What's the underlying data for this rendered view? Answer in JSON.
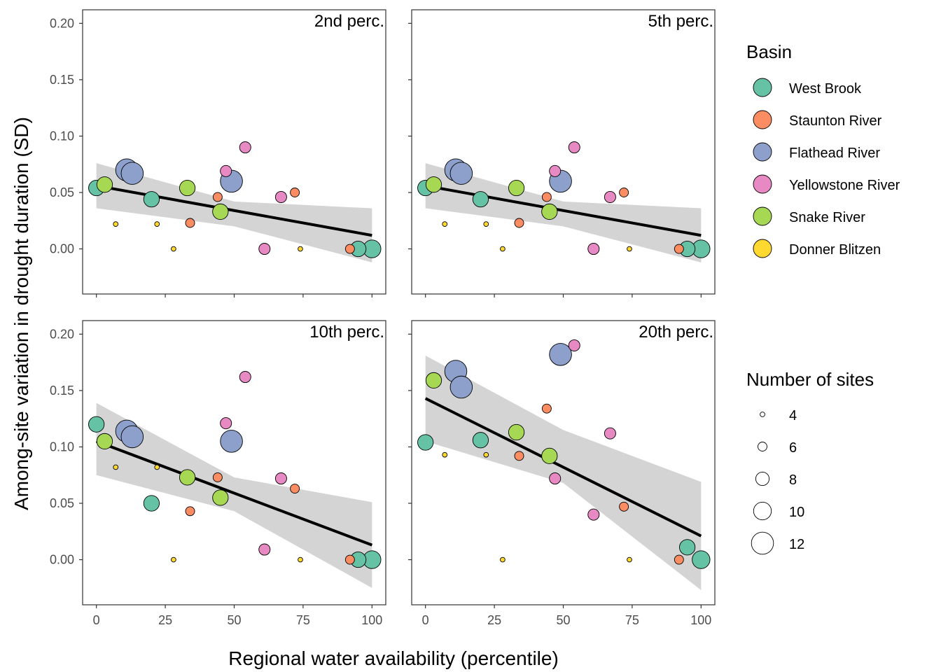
{
  "chart_data": {
    "type": "scatter",
    "xlabel": "Regional water availability (percentile)",
    "ylabel": "Among-site variation in drought duration (SD)",
    "xlim": [
      -5,
      105
    ],
    "ylim": [
      -0.04,
      0.212
    ],
    "x_ticks": [
      0,
      25,
      50,
      75,
      100
    ],
    "y_ticks": [
      0.0,
      0.05,
      0.1,
      0.15,
      0.2
    ],
    "x_tick_labels": [
      "0",
      "25",
      "50",
      "75",
      "100"
    ],
    "y_tick_labels": [
      "0.00",
      "0.05",
      "0.10",
      "0.15",
      "0.20"
    ],
    "grid": false,
    "legend_placement": "right",
    "basin_legend": {
      "title": "Basin",
      "entries": [
        {
          "name": "West Brook",
          "color": "#66c2a5"
        },
        {
          "name": "Staunton River",
          "color": "#fc8d62"
        },
        {
          "name": "Flathead River",
          "color": "#8da0cb"
        },
        {
          "name": "Yellowstone River",
          "color": "#e78ac3"
        },
        {
          "name": "Snake River",
          "color": "#a6d854"
        },
        {
          "name": "Donner Blitzen",
          "color": "#ffd92f"
        }
      ]
    },
    "size_legend": {
      "title": "Number of sites",
      "values": [
        4,
        6,
        8,
        10,
        12
      ],
      "labels": [
        "4",
        "6",
        "8",
        "10",
        "12"
      ]
    },
    "panels": [
      {
        "label": "2nd perc.",
        "points": [
          {
            "basin": "West Brook",
            "x": 0,
            "y": 0.054,
            "n": 9
          },
          {
            "basin": "West Brook",
            "x": 20,
            "y": 0.044,
            "n": 9
          },
          {
            "basin": "West Brook",
            "x": 95,
            "y": 0.0,
            "n": 9
          },
          {
            "basin": "West Brook",
            "x": 100,
            "y": 0.0,
            "n": 10
          },
          {
            "basin": "Staunton River",
            "x": 34,
            "y": 0.023,
            "n": 6
          },
          {
            "basin": "Staunton River",
            "x": 44,
            "y": 0.046,
            "n": 6
          },
          {
            "basin": "Staunton River",
            "x": 72,
            "y": 0.05,
            "n": 6
          },
          {
            "basin": "Staunton River",
            "x": 92,
            "y": 0.0,
            "n": 6
          },
          {
            "basin": "Flathead River",
            "x": 11,
            "y": 0.07,
            "n": 12
          },
          {
            "basin": "Flathead River",
            "x": 13,
            "y": 0.067,
            "n": 12
          },
          {
            "basin": "Flathead River",
            "x": 49,
            "y": 0.06,
            "n": 12
          },
          {
            "basin": "Yellowstone River",
            "x": 47,
            "y": 0.069,
            "n": 7
          },
          {
            "basin": "Yellowstone River",
            "x": 54,
            "y": 0.09,
            "n": 7
          },
          {
            "basin": "Yellowstone River",
            "x": 61,
            "y": 0.0,
            "n": 7
          },
          {
            "basin": "Yellowstone River",
            "x": 67,
            "y": 0.046,
            "n": 7
          },
          {
            "basin": "Snake River",
            "x": 3,
            "y": 0.057,
            "n": 9
          },
          {
            "basin": "Snake River",
            "x": 33,
            "y": 0.054,
            "n": 9
          },
          {
            "basin": "Snake River",
            "x": 45,
            "y": 0.033,
            "n": 9
          },
          {
            "basin": "Donner Blitzen",
            "x": 7,
            "y": 0.022,
            "n": 4
          },
          {
            "basin": "Donner Blitzen",
            "x": 22,
            "y": 0.022,
            "n": 4
          },
          {
            "basin": "Donner Blitzen",
            "x": 28,
            "y": 0.0,
            "n": 4
          },
          {
            "basin": "Donner Blitzen",
            "x": 74,
            "y": 0.0,
            "n": 4
          }
        ],
        "trend": {
          "x": [
            0,
            100
          ],
          "y": [
            0.056,
            0.012
          ]
        },
        "ribbon": {
          "x": [
            0,
            50,
            100
          ],
          "lower": [
            0.036,
            0.02,
            -0.012
          ],
          "upper": [
            0.076,
            0.042,
            0.036
          ]
        }
      },
      {
        "label": "5th perc.",
        "points": [
          {
            "basin": "West Brook",
            "x": 0,
            "y": 0.054,
            "n": 9
          },
          {
            "basin": "West Brook",
            "x": 20,
            "y": 0.044,
            "n": 9
          },
          {
            "basin": "West Brook",
            "x": 95,
            "y": 0.0,
            "n": 9
          },
          {
            "basin": "West Brook",
            "x": 100,
            "y": 0.0,
            "n": 10
          },
          {
            "basin": "Staunton River",
            "x": 34,
            "y": 0.023,
            "n": 6
          },
          {
            "basin": "Staunton River",
            "x": 44,
            "y": 0.046,
            "n": 6
          },
          {
            "basin": "Staunton River",
            "x": 72,
            "y": 0.05,
            "n": 6
          },
          {
            "basin": "Staunton River",
            "x": 92,
            "y": 0.0,
            "n": 6
          },
          {
            "basin": "Flathead River",
            "x": 11,
            "y": 0.07,
            "n": 12
          },
          {
            "basin": "Flathead River",
            "x": 13,
            "y": 0.067,
            "n": 12
          },
          {
            "basin": "Flathead River",
            "x": 49,
            "y": 0.06,
            "n": 12
          },
          {
            "basin": "Yellowstone River",
            "x": 47,
            "y": 0.069,
            "n": 7
          },
          {
            "basin": "Yellowstone River",
            "x": 54,
            "y": 0.09,
            "n": 7
          },
          {
            "basin": "Yellowstone River",
            "x": 61,
            "y": 0.0,
            "n": 7
          },
          {
            "basin": "Yellowstone River",
            "x": 67,
            "y": 0.046,
            "n": 7
          },
          {
            "basin": "Snake River",
            "x": 3,
            "y": 0.057,
            "n": 9
          },
          {
            "basin": "Snake River",
            "x": 33,
            "y": 0.054,
            "n": 9
          },
          {
            "basin": "Snake River",
            "x": 45,
            "y": 0.033,
            "n": 9
          },
          {
            "basin": "Donner Blitzen",
            "x": 7,
            "y": 0.022,
            "n": 4
          },
          {
            "basin": "Donner Blitzen",
            "x": 22,
            "y": 0.022,
            "n": 4
          },
          {
            "basin": "Donner Blitzen",
            "x": 28,
            "y": 0.0,
            "n": 4
          },
          {
            "basin": "Donner Blitzen",
            "x": 74,
            "y": 0.0,
            "n": 4
          }
        ],
        "trend": {
          "x": [
            0,
            100
          ],
          "y": [
            0.056,
            0.012
          ]
        },
        "ribbon": {
          "x": [
            0,
            50,
            100
          ],
          "lower": [
            0.036,
            0.02,
            -0.012
          ],
          "upper": [
            0.076,
            0.042,
            0.036
          ]
        }
      },
      {
        "label": "10th perc.",
        "points": [
          {
            "basin": "West Brook",
            "x": 0,
            "y": 0.12,
            "n": 9
          },
          {
            "basin": "West Brook",
            "x": 20,
            "y": 0.05,
            "n": 9
          },
          {
            "basin": "West Brook",
            "x": 95,
            "y": 0.0,
            "n": 9
          },
          {
            "basin": "West Brook",
            "x": 100,
            "y": 0.0,
            "n": 10
          },
          {
            "basin": "Staunton River",
            "x": 34,
            "y": 0.043,
            "n": 6
          },
          {
            "basin": "Staunton River",
            "x": 44,
            "y": 0.073,
            "n": 6
          },
          {
            "basin": "Staunton River",
            "x": 72,
            "y": 0.063,
            "n": 6
          },
          {
            "basin": "Staunton River",
            "x": 92,
            "y": 0.0,
            "n": 6
          },
          {
            "basin": "Flathead River",
            "x": 11,
            "y": 0.114,
            "n": 12
          },
          {
            "basin": "Flathead River",
            "x": 13,
            "y": 0.109,
            "n": 12
          },
          {
            "basin": "Flathead River",
            "x": 49,
            "y": 0.105,
            "n": 12
          },
          {
            "basin": "Yellowstone River",
            "x": 47,
            "y": 0.121,
            "n": 7
          },
          {
            "basin": "Yellowstone River",
            "x": 54,
            "y": 0.162,
            "n": 7
          },
          {
            "basin": "Yellowstone River",
            "x": 61,
            "y": 0.009,
            "n": 7
          },
          {
            "basin": "Yellowstone River",
            "x": 67,
            "y": 0.072,
            "n": 7
          },
          {
            "basin": "Snake River",
            "x": 3,
            "y": 0.105,
            "n": 9
          },
          {
            "basin": "Snake River",
            "x": 33,
            "y": 0.073,
            "n": 9
          },
          {
            "basin": "Snake River",
            "x": 45,
            "y": 0.055,
            "n": 9
          },
          {
            "basin": "Donner Blitzen",
            "x": 7,
            "y": 0.082,
            "n": 4
          },
          {
            "basin": "Donner Blitzen",
            "x": 22,
            "y": 0.082,
            "n": 4
          },
          {
            "basin": "Donner Blitzen",
            "x": 28,
            "y": 0.0,
            "n": 4
          },
          {
            "basin": "Donner Blitzen",
            "x": 74,
            "y": 0.0,
            "n": 4
          }
        ],
        "trend": {
          "x": [
            0,
            100
          ],
          "y": [
            0.105,
            0.013
          ]
        },
        "ribbon": {
          "x": [
            0,
            50,
            100
          ],
          "lower": [
            0.075,
            0.043,
            -0.025
          ],
          "upper": [
            0.139,
            0.073,
            0.051
          ]
        }
      },
      {
        "label": "20th perc.",
        "points": [
          {
            "basin": "West Brook",
            "x": 0,
            "y": 0.104,
            "n": 9
          },
          {
            "basin": "West Brook",
            "x": 20,
            "y": 0.106,
            "n": 9
          },
          {
            "basin": "West Brook",
            "x": 95,
            "y": 0.011,
            "n": 9
          },
          {
            "basin": "West Brook",
            "x": 100,
            "y": 0.0,
            "n": 10
          },
          {
            "basin": "Staunton River",
            "x": 34,
            "y": 0.092,
            "n": 6
          },
          {
            "basin": "Staunton River",
            "x": 44,
            "y": 0.134,
            "n": 6
          },
          {
            "basin": "Staunton River",
            "x": 72,
            "y": 0.047,
            "n": 6
          },
          {
            "basin": "Staunton River",
            "x": 92,
            "y": 0.0,
            "n": 6
          },
          {
            "basin": "Flathead River",
            "x": 11,
            "y": 0.167,
            "n": 12
          },
          {
            "basin": "Flathead River",
            "x": 13,
            "y": 0.153,
            "n": 12
          },
          {
            "basin": "Flathead River",
            "x": 49,
            "y": 0.182,
            "n": 12
          },
          {
            "basin": "Yellowstone River",
            "x": 47,
            "y": 0.072,
            "n": 7
          },
          {
            "basin": "Yellowstone River",
            "x": 54,
            "y": 0.19,
            "n": 7
          },
          {
            "basin": "Yellowstone River",
            "x": 61,
            "y": 0.04,
            "n": 7
          },
          {
            "basin": "Yellowstone River",
            "x": 67,
            "y": 0.112,
            "n": 7
          },
          {
            "basin": "Snake River",
            "x": 3,
            "y": 0.159,
            "n": 9
          },
          {
            "basin": "Snake River",
            "x": 33,
            "y": 0.113,
            "n": 9
          },
          {
            "basin": "Snake River",
            "x": 45,
            "y": 0.092,
            "n": 9
          },
          {
            "basin": "Donner Blitzen",
            "x": 7,
            "y": 0.093,
            "n": 4
          },
          {
            "basin": "Donner Blitzen",
            "x": 22,
            "y": 0.093,
            "n": 4
          },
          {
            "basin": "Donner Blitzen",
            "x": 28,
            "y": 0.0,
            "n": 4
          },
          {
            "basin": "Donner Blitzen",
            "x": 74,
            "y": 0.0,
            "n": 4
          }
        ],
        "trend": {
          "x": [
            0,
            100
          ],
          "y": [
            0.143,
            0.021
          ]
        },
        "ribbon": {
          "x": [
            0,
            50,
            100
          ],
          "lower": [
            0.105,
            0.068,
            -0.027
          ],
          "upper": [
            0.181,
            0.115,
            0.069
          ]
        }
      }
    ]
  }
}
